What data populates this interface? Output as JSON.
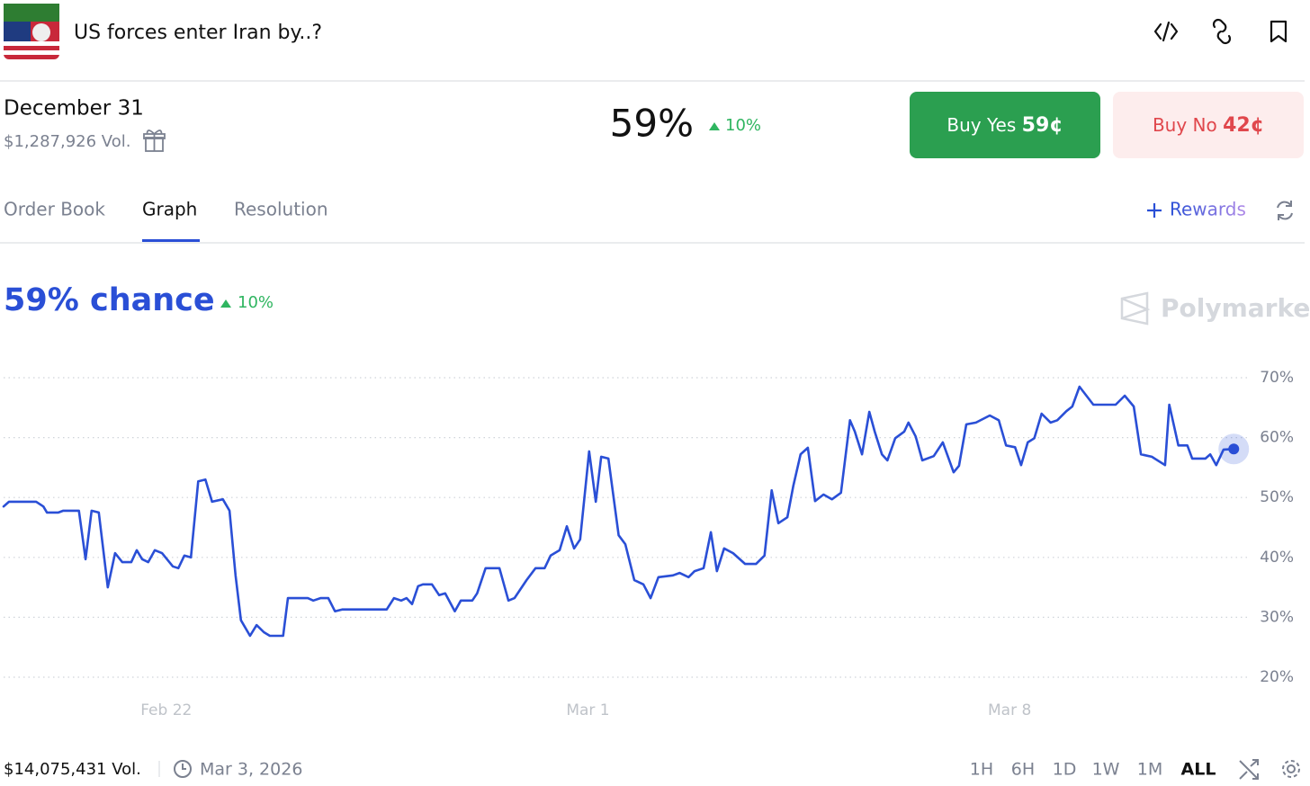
{
  "header": {
    "title": "US forces enter Iran by..?"
  },
  "market": {
    "date": "December 31",
    "volume": "$1,287,926 Vol.",
    "price": "59%",
    "change": "10%",
    "buy_yes": "Buy Yes",
    "yes_price": "59¢",
    "buy_no": "Buy No",
    "no_price": "42¢"
  },
  "tabs": [
    "Order Book",
    "Graph",
    "Resolution"
  ],
  "rewards": "Rewards",
  "chart_data": {
    "type": "line",
    "title": "59% chance",
    "change": "10%",
    "brand": "Polymarket",
    "x": [
      19.3,
      19.39,
      19.84,
      19.96,
      20.02,
      20.21,
      20.29,
      20.55,
      20.66,
      20.76,
      20.88,
      21.03,
      21.15,
      21.27,
      21.42,
      21.51,
      21.6,
      21.7,
      21.81,
      21.93,
      22.11,
      22.2,
      22.3,
      22.41,
      22.53,
      22.65,
      22.76,
      22.94,
      23.05,
      23.15,
      23.24,
      23.39,
      23.5,
      23.62,
      23.72,
      23.94,
      24.02,
      24.35,
      24.44,
      24.56,
      24.69,
      24.8,
      24.92,
      25.66,
      25.78,
      25.9,
      25.99,
      26.08,
      26.18,
      26.26,
      26.41,
      26.53,
      26.63,
      26.79,
      26.89,
      27.08,
      27.16,
      27.3,
      27.53,
      27.68,
      27.78,
      27.98,
      28.13,
      28.28,
      28.38,
      28.53,
      28.65,
      28.77,
      28.87,
      29.02,
      29.13,
      29.22,
      29.34,
      29.51,
      29.62,
      29.77,
      29.92,
      30.04,
      30.17,
      30.41,
      30.52,
      30.67,
      30.77,
      30.92,
      31.04,
      31.14,
      31.26,
      31.41,
      31.61,
      31.79,
      31.93,
      32.05,
      32.16,
      32.31,
      32.41,
      32.53,
      32.65,
      32.77,
      32.91,
      33.05,
      33.2,
      33.35,
      33.43,
      33.55,
      33.67,
      33.76,
      33.88,
      33.97,
      34.1,
      34.25,
      34.32,
      34.44,
      34.55,
      34.74,
      34.89,
      35.07,
      35.16,
      35.28,
      35.44,
      35.67,
      35.82,
      35.94,
      36.09,
      36.19,
      36.3,
      36.41,
      36.53,
      36.68,
      36.79,
      36.94,
      37.04,
      37.16,
      37.39,
      37.76,
      37.91,
      38.06,
      38.18,
      38.36,
      38.58,
      38.65,
      38.8,
      38.95,
      39.03,
      39.25,
      39.33,
      39.43,
      39.55,
      39.72
    ],
    "series": [
      {
        "color": "#2a4fd6",
        "values": [
          48.5,
          49.3,
          49.3,
          48.5,
          47.5,
          47.5,
          47.8,
          47.8,
          39.7,
          47.8,
          47.5,
          35.0,
          40.7,
          39.2,
          39.2,
          41.2,
          39.7,
          39.2,
          41.2,
          40.7,
          38.5,
          38.2,
          40.3,
          40.0,
          52.7,
          53.0,
          49.3,
          49.7,
          47.8,
          37.0,
          29.5,
          26.9,
          28.7,
          27.5,
          26.9,
          26.9,
          33.2,
          33.2,
          32.8,
          33.2,
          33.2,
          31.0,
          31.3,
          31.3,
          33.2,
          32.8,
          33.2,
          32.2,
          35.2,
          35.5,
          35.5,
          33.7,
          34.0,
          31.0,
          32.8,
          32.8,
          34.0,
          38.2,
          38.2,
          32.8,
          33.2,
          36.2,
          38.2,
          38.2,
          40.3,
          41.2,
          45.2,
          41.5,
          43.0,
          57.7,
          49.3,
          56.8,
          56.5,
          43.7,
          42.2,
          36.2,
          35.5,
          33.2,
          36.7,
          37.0,
          37.4,
          36.7,
          37.7,
          38.2,
          44.2,
          37.7,
          41.5,
          40.7,
          38.9,
          38.9,
          40.3,
          51.2,
          45.7,
          46.7,
          52.0,
          57.2,
          58.3,
          49.4,
          50.5,
          49.7,
          50.8,
          62.9,
          61.0,
          57.2,
          64.3,
          61.0,
          57.2,
          56.2,
          59.9,
          61.0,
          62.5,
          60.2,
          56.2,
          56.9,
          59.2,
          54.2,
          55.3,
          62.2,
          62.5,
          63.7,
          62.9,
          58.7,
          58.4,
          55.4,
          59.2,
          59.9,
          64.0,
          62.5,
          62.9,
          64.4,
          65.2,
          68.5,
          65.5,
          65.5,
          67.0,
          65.2,
          57.2,
          56.8,
          55.4,
          65.5,
          58.7,
          58.7,
          56.5,
          56.5,
          57.2,
          55.4,
          58.0,
          58.1
        ]
      }
    ],
    "xlim": [
      19.3,
      40.0
    ],
    "xticks": [
      {
        "value": 22,
        "label": "Feb 22"
      },
      {
        "value": 29,
        "label": "Mar 1"
      },
      {
        "value": 36,
        "label": "Mar 8"
      }
    ],
    "ylim": [
      20,
      70
    ],
    "yticks": [
      {
        "value": 20,
        "label": "20%"
      },
      {
        "value": 30,
        "label": "30%"
      },
      {
        "value": 40,
        "label": "40%"
      },
      {
        "value": 50,
        "label": "50%"
      },
      {
        "value": 60,
        "label": "60%"
      },
      {
        "value": 70,
        "label": "70%"
      }
    ],
    "grid": true
  },
  "footer": {
    "volume": "$14,075,431 Vol.",
    "date": "Mar 3, 2026",
    "ranges": [
      "1H",
      "6H",
      "1D",
      "1W",
      "1M",
      "ALL"
    ]
  }
}
